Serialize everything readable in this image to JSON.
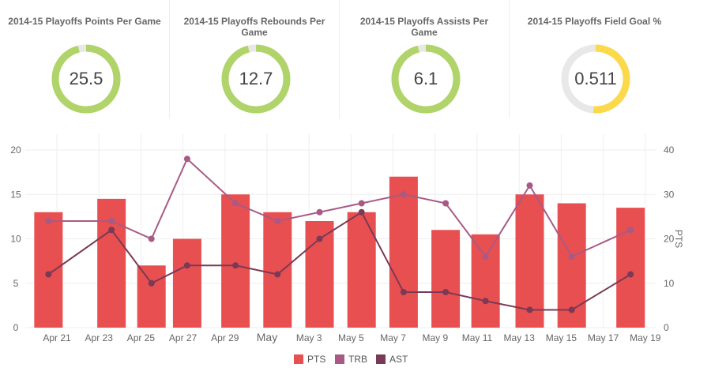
{
  "gauges": [
    {
      "title": "2014-15 Playoffs Points Per Game",
      "value": "25.5",
      "fraction": 0.96,
      "color": "#b0d46a"
    },
    {
      "title": "2014-15 Playoffs Rebounds Per Game",
      "value": "12.7",
      "fraction": 0.96,
      "color": "#b0d46a"
    },
    {
      "title": "2014-15 Playoffs Assists Per Game",
      "value": "6.1",
      "fraction": 0.96,
      "color": "#b0d46a"
    },
    {
      "title": "2014-15 Playoffs Field Goal %",
      "value": "0.511",
      "fraction": 0.511,
      "color": "#fcd94a"
    }
  ],
  "chart_data": {
    "type": "bar+line",
    "x_unit": "day of April 2015 (fractional)",
    "x": [
      20.6,
      23.6,
      25.5,
      27.2,
      29.5,
      31.5,
      33.5,
      35.5,
      37.5,
      39.5,
      41.4,
      43.5,
      45.5,
      48.3
    ],
    "series": [
      {
        "name": "PTS",
        "type": "bar",
        "axis": "right",
        "color": "#e84f50",
        "values": [
          26,
          29,
          14,
          20,
          30,
          26,
          24,
          26,
          34,
          22,
          21,
          30,
          28,
          27
        ]
      },
      {
        "name": "TRB",
        "type": "line",
        "axis": "left",
        "color": "#a85a85",
        "values": [
          12,
          12,
          10,
          19,
          14,
          12,
          13,
          14,
          15,
          14,
          8,
          16,
          8,
          11
        ]
      },
      {
        "name": "AST",
        "type": "line",
        "axis": "left",
        "color": "#7a3a55",
        "values": [
          6,
          11,
          5,
          7,
          7,
          6,
          10,
          13,
          4,
          4,
          3,
          2,
          2,
          6
        ]
      }
    ],
    "x_ticks": [
      {
        "day": 21,
        "label": "Apr 21"
      },
      {
        "day": 23,
        "label": "Apr 23"
      },
      {
        "day": 25,
        "label": "Apr 25"
      },
      {
        "day": 27,
        "label": "Apr 27"
      },
      {
        "day": 29,
        "label": "Apr 29"
      },
      {
        "day": 31,
        "label": "May"
      },
      {
        "day": 33,
        "label": "May 3"
      },
      {
        "day": 35,
        "label": "May 5"
      },
      {
        "day": 37,
        "label": "May 7"
      },
      {
        "day": 39,
        "label": "May 9"
      },
      {
        "day": 41,
        "label": "May 11"
      },
      {
        "day": 43,
        "label": "May 13"
      },
      {
        "day": 45,
        "label": "May 15"
      },
      {
        "day": 47,
        "label": "May 17"
      },
      {
        "day": 49,
        "label": "May 19"
      }
    ],
    "left_ticks": [
      0,
      5,
      10,
      15,
      20
    ],
    "right_ticks": [
      0,
      10,
      20,
      30,
      40
    ],
    "ylim_left": [
      0,
      20
    ],
    "ylim_right": [
      0,
      40
    ],
    "ylabel_right": "PTS",
    "legend": [
      "PTS",
      "TRB",
      "AST"
    ],
    "legend_position": "bottom"
  }
}
